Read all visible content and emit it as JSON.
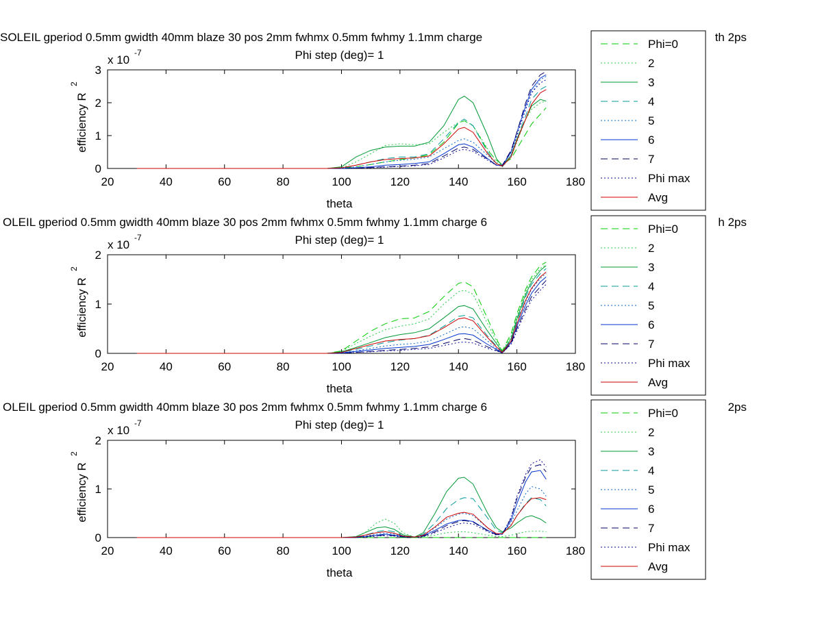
{
  "chart_data": [
    {
      "type": "line",
      "title_line1": "SOLEIL gperiod 0.5mm gwidth 40mm blaze 30 pos 2mm fwhmx 0.5mm fwhmy 1.1mm charge",
      "title_line1_right": "th 2ps",
      "title_line2": "Phi step (deg)= 1",
      "xlabel": "theta",
      "ylabel": "efficiency R",
      "ylabel_sup": "2",
      "exponent_base": "x 10",
      "exponent_power": "-7",
      "xlim": [
        20,
        180
      ],
      "ylim": [
        0,
        3
      ],
      "xticks": [
        "20",
        "40",
        "60",
        "80",
        "100",
        "120",
        "140",
        "160",
        "180"
      ],
      "yticks": [
        "0",
        "1",
        "2",
        "3"
      ],
      "x": [
        30,
        40,
        50,
        60,
        70,
        80,
        90,
        95,
        100,
        105,
        110,
        115,
        120,
        125,
        130,
        135,
        140,
        142,
        145,
        150,
        153,
        155,
        158,
        160,
        163,
        165,
        168,
        170
      ],
      "series": [
        {
          "name": "Phi=0",
          "color": "#00cc00",
          "dash": "10,6",
          "values": [
            0,
            0,
            0,
            0,
            0,
            0,
            0,
            0,
            0.01,
            0.05,
            0.12,
            0.2,
            0.27,
            0.32,
            0.42,
            0.8,
            1.38,
            1.45,
            1.3,
            0.55,
            0.25,
            0.12,
            0.3,
            0.6,
            1.05,
            1.35,
            1.65,
            1.85
          ]
        },
        {
          "name": "2",
          "color": "#22cc44",
          "dash": "2,3",
          "values": [
            0,
            0,
            0,
            0,
            0,
            0,
            0,
            0,
            0.02,
            0.2,
            0.45,
            0.7,
            0.75,
            0.72,
            0.75,
            1.1,
            1.4,
            1.45,
            1.3,
            0.6,
            0.2,
            0.05,
            0.35,
            0.8,
            1.5,
            1.8,
            2.0,
            2.05
          ]
        },
        {
          "name": "3",
          "color": "#009933",
          "dash": "",
          "values": [
            0,
            0,
            0,
            0,
            0,
            0,
            0,
            0,
            0.05,
            0.35,
            0.55,
            0.65,
            0.68,
            0.68,
            0.8,
            1.3,
            2.1,
            2.2,
            2.0,
            1.0,
            0.3,
            0.08,
            0.4,
            0.9,
            1.5,
            1.9,
            2.1,
            2.05
          ]
        },
        {
          "name": "4",
          "color": "#009999",
          "dash": "10,6",
          "values": [
            0,
            0,
            0,
            0,
            0,
            0,
            0,
            0,
            0.01,
            0.1,
            0.2,
            0.3,
            0.35,
            0.35,
            0.45,
            0.9,
            1.4,
            1.5,
            1.3,
            0.5,
            0.15,
            0.05,
            0.4,
            0.9,
            1.6,
            2.1,
            2.4,
            2.5
          ]
        },
        {
          "name": "5",
          "color": "#0066cc",
          "dash": "2,3",
          "values": [
            0,
            0,
            0,
            0,
            0,
            0,
            0,
            0,
            0.01,
            0.05,
            0.12,
            0.2,
            0.25,
            0.28,
            0.35,
            0.6,
            0.85,
            0.9,
            0.8,
            0.4,
            0.15,
            0.1,
            0.5,
            1.0,
            1.8,
            2.3,
            2.7,
            2.8
          ]
        },
        {
          "name": "6",
          "color": "#0033cc",
          "dash": "",
          "values": [
            0,
            0,
            0,
            0,
            0,
            0,
            0,
            0,
            0,
            0.02,
            0.05,
            0.1,
            0.12,
            0.15,
            0.2,
            0.45,
            0.72,
            0.75,
            0.65,
            0.3,
            0.1,
            0.08,
            0.5,
            1.1,
            1.9,
            2.4,
            2.75,
            2.85
          ]
        },
        {
          "name": "7",
          "color": "#000066",
          "dash": "10,6",
          "values": [
            0,
            0,
            0,
            0,
            0,
            0,
            0,
            0,
            0,
            0.01,
            0.03,
            0.05,
            0.07,
            0.1,
            0.15,
            0.38,
            0.62,
            0.65,
            0.58,
            0.28,
            0.1,
            0.1,
            0.55,
            1.1,
            2.0,
            2.5,
            2.85,
            2.95
          ]
        },
        {
          "name": "Phi max",
          "color": "#000099",
          "dash": "2,3",
          "values": [
            0,
            0,
            0,
            0,
            0,
            0,
            0,
            0,
            0,
            0.01,
            0.02,
            0.04,
            0.06,
            0.08,
            0.12,
            0.32,
            0.55,
            0.58,
            0.52,
            0.25,
            0.1,
            0.1,
            0.5,
            1.0,
            1.8,
            2.3,
            2.6,
            2.7
          ]
        },
        {
          "name": "Avg",
          "color": "#cc0000",
          "dash": "",
          "values": [
            0,
            0,
            0,
            0,
            0,
            0,
            0,
            0,
            0.02,
            0.1,
            0.2,
            0.27,
            0.3,
            0.32,
            0.38,
            0.75,
            1.2,
            1.25,
            1.1,
            0.45,
            0.15,
            0.07,
            0.35,
            0.85,
            1.5,
            1.95,
            2.3,
            2.4
          ]
        }
      ]
    },
    {
      "type": "line",
      "title_line1": "OLEIL gperiod 0.5mm gwidth 40mm blaze 30 pos 2mm fwhmx 0.5mm fwhmy 1.1mm charge 6",
      "title_line1_right": "h 2ps",
      "title_line2": "Phi step (deg)= 1",
      "xlabel": "theta",
      "ylabel": "efficiency R",
      "ylabel_sup": "2",
      "exponent_base": "x 10",
      "exponent_power": "-7",
      "xlim": [
        20,
        180
      ],
      "ylim": [
        0,
        2
      ],
      "xticks": [
        "20",
        "40",
        "60",
        "80",
        "100",
        "120",
        "140",
        "160",
        "180"
      ],
      "yticks": [
        "0",
        "1",
        "2"
      ],
      "x": [
        30,
        40,
        50,
        60,
        70,
        80,
        90,
        95,
        100,
        105,
        110,
        115,
        120,
        125,
        130,
        135,
        140,
        142,
        145,
        150,
        153,
        155,
        158,
        160,
        163,
        165,
        168,
        170
      ],
      "series": [
        {
          "name": "Phi=0",
          "color": "#00cc00",
          "dash": "10,6",
          "values": [
            0,
            0,
            0,
            0,
            0,
            0,
            0,
            0,
            0.05,
            0.25,
            0.45,
            0.6,
            0.7,
            0.72,
            0.85,
            1.15,
            1.42,
            1.45,
            1.35,
            0.7,
            0.3,
            0.05,
            0.4,
            0.8,
            1.3,
            1.55,
            1.78,
            1.85
          ]
        },
        {
          "name": "2",
          "color": "#22cc44",
          "dash": "2,3",
          "values": [
            0,
            0,
            0,
            0,
            0,
            0,
            0,
            0,
            0.04,
            0.2,
            0.35,
            0.48,
            0.55,
            0.6,
            0.7,
            1.0,
            1.25,
            1.28,
            1.2,
            0.6,
            0.25,
            0.05,
            0.35,
            0.75,
            1.25,
            1.5,
            1.72,
            1.8
          ]
        },
        {
          "name": "3",
          "color": "#009933",
          "dash": "",
          "values": [
            0,
            0,
            0,
            0,
            0,
            0,
            0,
            0,
            0.03,
            0.12,
            0.22,
            0.32,
            0.38,
            0.42,
            0.5,
            0.72,
            0.95,
            0.97,
            0.9,
            0.45,
            0.2,
            0.03,
            0.3,
            0.7,
            1.2,
            1.45,
            1.68,
            1.78
          ]
        },
        {
          "name": "4",
          "color": "#009999",
          "dash": "10,6",
          "values": [
            0,
            0,
            0,
            0,
            0,
            0,
            0,
            0,
            0.02,
            0.08,
            0.15,
            0.22,
            0.27,
            0.3,
            0.37,
            0.55,
            0.75,
            0.77,
            0.72,
            0.35,
            0.15,
            0.02,
            0.28,
            0.65,
            1.15,
            1.4,
            1.62,
            1.72
          ]
        },
        {
          "name": "5",
          "color": "#0066cc",
          "dash": "2,3",
          "values": [
            0,
            0,
            0,
            0,
            0,
            0,
            0,
            0,
            0.01,
            0.05,
            0.1,
            0.15,
            0.18,
            0.2,
            0.25,
            0.38,
            0.52,
            0.54,
            0.5,
            0.25,
            0.1,
            0.02,
            0.25,
            0.6,
            1.05,
            1.3,
            1.52,
            1.62
          ]
        },
        {
          "name": "6",
          "color": "#0033cc",
          "dash": "",
          "values": [
            0,
            0,
            0,
            0,
            0,
            0,
            0,
            0,
            0.01,
            0.04,
            0.07,
            0.1,
            0.12,
            0.14,
            0.18,
            0.28,
            0.39,
            0.4,
            0.37,
            0.18,
            0.08,
            0.01,
            0.22,
            0.55,
            0.98,
            1.22,
            1.45,
            1.55
          ]
        },
        {
          "name": "7",
          "color": "#000066",
          "dash": "10,6",
          "values": [
            0,
            0,
            0,
            0,
            0,
            0,
            0,
            0,
            0,
            0.02,
            0.04,
            0.06,
            0.08,
            0.1,
            0.13,
            0.2,
            0.28,
            0.3,
            0.27,
            0.13,
            0.06,
            0.01,
            0.2,
            0.5,
            0.9,
            1.15,
            1.35,
            1.48
          ]
        },
        {
          "name": "Phi max",
          "color": "#000099",
          "dash": "2,3",
          "values": [
            0,
            0,
            0,
            0,
            0,
            0,
            0,
            0,
            0,
            0.02,
            0.03,
            0.05,
            0.06,
            0.08,
            0.1,
            0.16,
            0.22,
            0.23,
            0.21,
            0.1,
            0.05,
            0.01,
            0.18,
            0.45,
            0.85,
            1.08,
            1.28,
            1.4
          ]
        },
        {
          "name": "Avg",
          "color": "#cc0000",
          "dash": "",
          "values": [
            0,
            0,
            0,
            0,
            0,
            0,
            0,
            0,
            0.02,
            0.1,
            0.18,
            0.25,
            0.28,
            0.3,
            0.36,
            0.52,
            0.7,
            0.72,
            0.66,
            0.32,
            0.13,
            0.02,
            0.25,
            0.6,
            1.08,
            1.32,
            1.55,
            1.65
          ]
        }
      ]
    },
    {
      "type": "line",
      "title_line1": "OLEIL gperiod 0.5mm gwidth 40mm blaze 30 pos 2mm fwhmx 0.5mm fwhmy 1.1mm charge 6",
      "title_line1_right": "2ps",
      "title_line2": "Phi step (deg)= 1",
      "xlabel": "theta",
      "ylabel": "efficiency R",
      "ylabel_sup": "2",
      "exponent_base": "x 10",
      "exponent_power": "-7",
      "xlim": [
        20,
        180
      ],
      "ylim": [
        0,
        2
      ],
      "xticks": [
        "20",
        "40",
        "60",
        "80",
        "100",
        "120",
        "140",
        "160",
        "180"
      ],
      "yticks": [
        "0",
        "1",
        "2"
      ],
      "x": [
        30,
        40,
        50,
        60,
        70,
        80,
        90,
        100,
        105,
        108,
        112,
        115,
        118,
        121,
        125,
        128,
        132,
        136,
        140,
        142,
        145,
        150,
        153,
        155,
        158,
        160,
        163,
        165,
        168,
        170
      ],
      "series": [
        {
          "name": "Phi=0",
          "color": "#00cc00",
          "dash": "10,6",
          "values": [
            0,
            0,
            0,
            0,
            0,
            0,
            0,
            0,
            0,
            0,
            0,
            0,
            0,
            0,
            0,
            0,
            0,
            0,
            0,
            0,
            0,
            0,
            0,
            0,
            0,
            0,
            0,
            0,
            0,
            0
          ]
        },
        {
          "name": "2",
          "color": "#22cc44",
          "dash": "2,3",
          "values": [
            0,
            0,
            0,
            0,
            0,
            0,
            0,
            0,
            0.02,
            0.1,
            0.3,
            0.38,
            0.3,
            0.1,
            0.01,
            0.02,
            0.05,
            0.1,
            0.12,
            0.12,
            0.1,
            0.05,
            0.02,
            0.02,
            0.05,
            0.08,
            0.12,
            0.13,
            0.13,
            0.12
          ]
        },
        {
          "name": "3",
          "color": "#009933",
          "dash": "",
          "values": [
            0,
            0,
            0,
            0,
            0,
            0,
            0,
            0,
            0.02,
            0.1,
            0.2,
            0.22,
            0.17,
            0.06,
            0.01,
            0.1,
            0.5,
            0.95,
            1.22,
            1.24,
            1.1,
            0.5,
            0.2,
            0.12,
            0.2,
            0.3,
            0.42,
            0.45,
            0.38,
            0.3
          ]
        },
        {
          "name": "4",
          "color": "#009999",
          "dash": "10,6",
          "values": [
            0,
            0,
            0,
            0,
            0,
            0,
            0,
            0,
            0.01,
            0.05,
            0.12,
            0.15,
            0.12,
            0.04,
            0.01,
            0.07,
            0.3,
            0.6,
            0.78,
            0.82,
            0.8,
            0.4,
            0.15,
            0.1,
            0.25,
            0.45,
            0.7,
            0.82,
            0.78,
            0.65
          ]
        },
        {
          "name": "5",
          "color": "#0066cc",
          "dash": "2,3",
          "values": [
            0,
            0,
            0,
            0,
            0,
            0,
            0,
            0,
            0.01,
            0.03,
            0.07,
            0.09,
            0.07,
            0.02,
            0.01,
            0.05,
            0.2,
            0.38,
            0.48,
            0.5,
            0.45,
            0.2,
            0.08,
            0.08,
            0.3,
            0.55,
            0.9,
            1.05,
            1.0,
            0.85
          ]
        },
        {
          "name": "6",
          "color": "#0033cc",
          "dash": "",
          "values": [
            0,
            0,
            0,
            0,
            0,
            0,
            0,
            0,
            0.01,
            0.02,
            0.05,
            0.07,
            0.05,
            0.02,
            0.01,
            0.04,
            0.15,
            0.28,
            0.35,
            0.36,
            0.33,
            0.15,
            0.07,
            0.07,
            0.35,
            0.7,
            1.15,
            1.35,
            1.38,
            1.2
          ]
        },
        {
          "name": "7",
          "color": "#000066",
          "dash": "10,6",
          "values": [
            0,
            0,
            0,
            0,
            0,
            0,
            0,
            0,
            0,
            0.02,
            0.04,
            0.05,
            0.04,
            0.01,
            0.01,
            0.03,
            0.12,
            0.25,
            0.33,
            0.35,
            0.32,
            0.14,
            0.06,
            0.07,
            0.4,
            0.8,
            1.25,
            1.45,
            1.5,
            1.35
          ]
        },
        {
          "name": "Phi max",
          "color": "#000099",
          "dash": "2,3",
          "values": [
            0,
            0,
            0,
            0,
            0,
            0,
            0,
            0,
            0,
            0.01,
            0.03,
            0.04,
            0.03,
            0.01,
            0.01,
            0.02,
            0.1,
            0.2,
            0.28,
            0.3,
            0.28,
            0.12,
            0.05,
            0.07,
            0.42,
            0.85,
            1.3,
            1.52,
            1.6,
            1.45
          ]
        },
        {
          "name": "Avg",
          "color": "#cc0000",
          "dash": "",
          "values": [
            0,
            0,
            0,
            0,
            0,
            0,
            0,
            0,
            0.01,
            0.05,
            0.1,
            0.12,
            0.09,
            0.03,
            0.01,
            0.05,
            0.22,
            0.42,
            0.5,
            0.52,
            0.48,
            0.2,
            0.08,
            0.08,
            0.25,
            0.45,
            0.68,
            0.8,
            0.82,
            0.78
          ]
        }
      ]
    }
  ]
}
